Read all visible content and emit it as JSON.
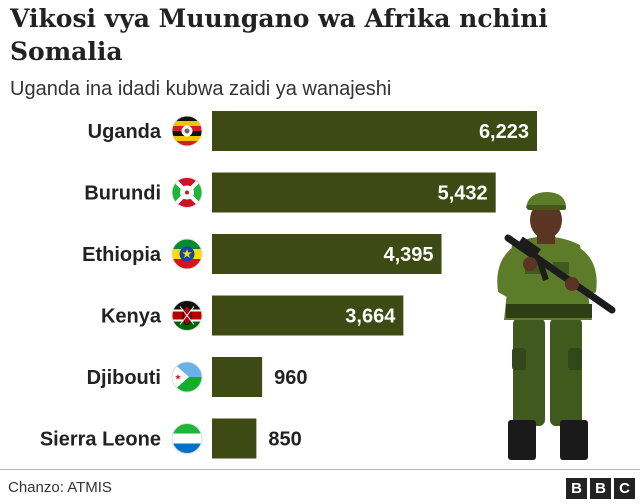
{
  "title": "Vikosi vya Muungano wa Afrika nchini Somalia",
  "subtitle": "Uganda ina idadi kubwa zaidi ya wanajeshi",
  "source": "Chanzo: ATMIS",
  "logo": [
    "B",
    "B",
    "C"
  ],
  "colors": {
    "bar": "#3d4a14",
    "label_inside": "#ffffff",
    "label_outside": "#222222",
    "text": "#222222",
    "uniform": "#5d7c2a",
    "uniform_dark": "#3f5a1c",
    "skin": "#5a3524",
    "rifle": "#1c1c1c"
  },
  "chart_data": {
    "type": "bar",
    "orientation": "horizontal",
    "title": "Vikosi vya Muungano wa Afrika nchini Somalia",
    "subtitle": "Uganda ina idadi kubwa zaidi ya wanajeshi",
    "categories": [
      "Uganda",
      "Burundi",
      "Ethiopia",
      "Kenya",
      "Djibouti",
      "Sierra Leone"
    ],
    "values": [
      6223,
      5432,
      4395,
      3664,
      960,
      850
    ],
    "value_labels": [
      "6,223",
      "5,432",
      "4,395",
      "3,664",
      "960",
      "850"
    ],
    "flags": [
      "uganda-flag-icon",
      "burundi-flag-icon",
      "ethiopia-flag-icon",
      "kenya-flag-icon",
      "djibouti-flag-icon",
      "sierra-leone-flag-icon"
    ],
    "xlabel": "",
    "ylabel": "",
    "xlim": [
      0,
      6223
    ],
    "grid": false
  }
}
